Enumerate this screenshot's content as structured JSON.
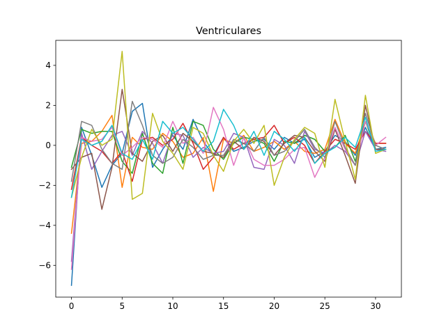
{
  "chart_data": {
    "type": "line",
    "title": "Ventriculares",
    "xlabel": "",
    "ylabel": "",
    "xlim": [
      -1.55,
      32.55
    ],
    "ylim": [
      -7.59,
      5.25
    ],
    "xticks": [
      0,
      5,
      10,
      15,
      20,
      25,
      30
    ],
    "yticks": [
      -6,
      -4,
      -2,
      0,
      2,
      4
    ],
    "xtick_labels": [
      "0",
      "5",
      "10",
      "15",
      "20",
      "25",
      "30"
    ],
    "ytick_labels": [
      "−6",
      "−4",
      "−2",
      "0",
      "2",
      "4"
    ],
    "grid": false,
    "x": [
      0,
      1,
      2,
      3,
      4,
      5,
      6,
      7,
      8,
      9,
      10,
      11,
      12,
      13,
      14,
      15,
      16,
      17,
      18,
      19,
      20,
      21,
      22,
      23,
      24,
      25,
      26,
      27,
      28,
      29,
      30,
      31
    ],
    "series": [
      {
        "color": "#1f77b4",
        "values": [
          -7.0,
          0.9,
          -0.5,
          -2.1,
          -1.0,
          -0.4,
          1.7,
          2.1,
          -1.1,
          -0.2,
          0.5,
          -0.2,
          1.3,
          0.2,
          -0.5,
          0.4,
          -0.3,
          -0.1,
          0.2,
          0.3,
          -0.2,
          0.4,
          0.1,
          0.3,
          -0.6,
          -0.3,
          0.5,
          0.2,
          -0.5,
          0.9,
          -0.2,
          -0.1
        ]
      },
      {
        "color": "#ff7f0e",
        "values": [
          -4.4,
          0.1,
          0.2,
          0.7,
          1.5,
          -2.1,
          0.4,
          -0.1,
          -0.2,
          0.6,
          0.2,
          -0.6,
          -0.4,
          0.4,
          -2.3,
          0.3,
          0.1,
          0.5,
          -0.3,
          -0.1,
          0.2,
          -0.2,
          0.2,
          -0.3,
          -0.4,
          -0.2,
          1.3,
          0.1,
          -0.4,
          1.2,
          0.1,
          0.1
        ]
      },
      {
        "color": "#2ca02c",
        "values": [
          -1.1,
          0.8,
          0.6,
          0.7,
          0.7,
          -0.8,
          -1.4,
          0.6,
          -0.9,
          -1.4,
          0.9,
          -0.9,
          1.2,
          1.0,
          -0.2,
          -0.7,
          0.1,
          0.4,
          0.3,
          0.1,
          -0.8,
          0.2,
          0.1,
          0.5,
          0.3,
          -0.3,
          -0.1,
          0.5,
          -0.8,
          1.2,
          -0.2,
          -0.2
        ]
      },
      {
        "color": "#d62728",
        "values": [
          -2.2,
          0.4,
          0.0,
          -0.3,
          -0.9,
          -0.3,
          -1.8,
          0.3,
          0.4,
          0.0,
          0.3,
          1.1,
          0.1,
          -1.2,
          -0.6,
          0.4,
          -0.2,
          0.1,
          0.3,
          0.4,
          1.0,
          0.1,
          0.4,
          0.0,
          -0.9,
          -0.3,
          0.3,
          0.1,
          -0.2,
          0.7,
          0.1,
          0.1
        ]
      },
      {
        "color": "#9467bd",
        "values": [
          -5.8,
          0.6,
          -1.2,
          -0.3,
          0.5,
          0.7,
          -0.5,
          0.7,
          0.1,
          -0.9,
          0.6,
          0.5,
          -0.6,
          -0.1,
          -0.4,
          -0.3,
          0.6,
          0.4,
          -1.1,
          -1.2,
          0.3,
          0.0,
          -0.9,
          0.7,
          -0.2,
          -0.4,
          0.0,
          -0.3,
          -1.0,
          0.7,
          -0.2,
          -0.3
        ]
      },
      {
        "color": "#8c564b",
        "values": [
          -1.2,
          -0.6,
          -0.4,
          -3.2,
          -1.1,
          2.8,
          -0.4,
          -0.8,
          0.2,
          0.5,
          -0.3,
          0.6,
          0.2,
          -0.3,
          -0.4,
          -0.6,
          0.2,
          -0.2,
          0.4,
          0.2,
          -0.5,
          0.1,
          0.5,
          0.4,
          -0.3,
          -0.8,
          0.8,
          -0.5,
          -1.9,
          2.0,
          -0.2,
          -0.2
        ]
      },
      {
        "color": "#e377c2",
        "values": [
          -6.2,
          0.4,
          0.2,
          0.3,
          0.9,
          -0.5,
          -0.1,
          0.4,
          0.3,
          -0.1,
          1.2,
          0.1,
          0.4,
          -0.4,
          1.9,
          0.8,
          -1.0,
          0.4,
          -0.7,
          -1.0,
          -1.0,
          -0.7,
          -0.2,
          -0.1,
          -1.6,
          -0.6,
          0.9,
          -0.2,
          -1.0,
          1.2,
          0.0,
          0.4
        ]
      },
      {
        "color": "#7f7f7f",
        "values": [
          -1.8,
          1.2,
          1.0,
          -0.2,
          -0.9,
          -1.2,
          2.2,
          1.0,
          -0.5,
          -0.9,
          -0.6,
          0.3,
          -0.1,
          -0.7,
          -0.5,
          -0.5,
          0.3,
          0.1,
          -0.3,
          0.4,
          -0.5,
          -0.3,
          0.2,
          0.8,
          -0.1,
          -0.6,
          1.2,
          -0.1,
          -1.0,
          1.6,
          0.0,
          -0.2
        ]
      },
      {
        "color": "#bcbd22",
        "values": [
          -2.6,
          -0.6,
          0.8,
          0.0,
          0.3,
          4.7,
          -2.7,
          -2.4,
          1.6,
          0.2,
          -0.4,
          -1.2,
          0.9,
          0.6,
          -0.5,
          -1.3,
          0.2,
          0.8,
          0.1,
          1.0,
          -2.0,
          -0.6,
          0.3,
          0.9,
          0.6,
          -1.1,
          2.3,
          0.2,
          -1.7,
          2.5,
          -0.4,
          -0.2
        ]
      },
      {
        "color": "#17becf",
        "values": [
          -2.6,
          0.3,
          0.0,
          0.2,
          1.0,
          -0.4,
          -0.7,
          0.3,
          -0.7,
          1.2,
          0.6,
          0.9,
          0.3,
          -0.3,
          0.2,
          1.8,
          1.0,
          -0.2,
          0.7,
          -0.5,
          0.7,
          0.3,
          -0.3,
          0.4,
          -0.9,
          -0.4,
          -0.1,
          0.4,
          -0.1,
          1.4,
          -0.3,
          -0.2
        ]
      }
    ]
  }
}
